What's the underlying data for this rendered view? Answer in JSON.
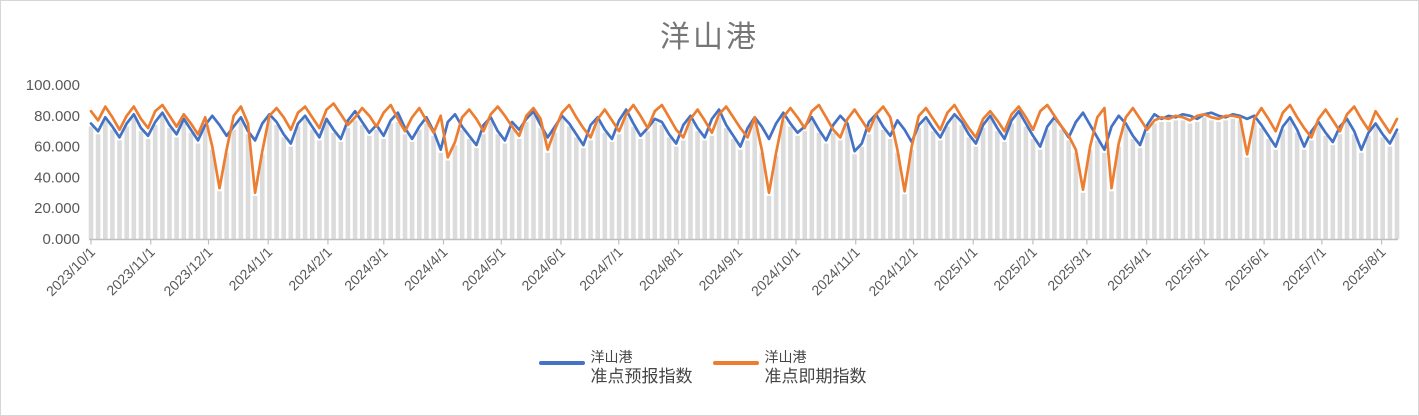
{
  "chart": {
    "title": "洋山港"
  },
  "legend": {
    "entries": [
      {
        "line1": "洋山港",
        "line2": "准点预报指数"
      },
      {
        "line1": "洋山港",
        "line2": "准点即期指数"
      }
    ]
  },
  "chart_data": {
    "type": "line",
    "title": "洋山港",
    "xlabel": "",
    "ylabel": "",
    "ylim": [
      0,
      100
    ],
    "grid": false,
    "legend_position": "bottom",
    "y_tick_labels": [
      "0.000",
      "20.000",
      "40.000",
      "60.000",
      "80.000",
      "100.000"
    ],
    "y_tick_values": [
      0,
      20,
      40,
      60,
      80,
      100
    ],
    "span_days": 678,
    "x_labels": [
      {
        "label": "2023/10/1",
        "day": 0
      },
      {
        "label": "2023/11/1",
        "day": 31
      },
      {
        "label": "2023/12/1",
        "day": 61
      },
      {
        "label": "2024/1/1",
        "day": 92
      },
      {
        "label": "2024/2/1",
        "day": 123
      },
      {
        "label": "2024/3/1",
        "day": 152
      },
      {
        "label": "2024/4/1",
        "day": 183
      },
      {
        "label": "2024/5/1",
        "day": 213
      },
      {
        "label": "2024/6/1",
        "day": 244
      },
      {
        "label": "2024/7/1",
        "day": 274
      },
      {
        "label": "2024/8/1",
        "day": 305
      },
      {
        "label": "2024/9/1",
        "day": 336
      },
      {
        "label": "2024/10/1",
        "day": 366
      },
      {
        "label": "2024/11/1",
        "day": 397
      },
      {
        "label": "2024/12/1",
        "day": 427
      },
      {
        "label": "2025/1/1",
        "day": 458
      },
      {
        "label": "2025/2/1",
        "day": 489
      },
      {
        "label": "2025/3/1",
        "day": 517
      },
      {
        "label": "2025/4/1",
        "day": 548
      },
      {
        "label": "2025/5/1",
        "day": 578
      },
      {
        "label": "2025/6/1",
        "day": 609
      },
      {
        "label": "2025/7/1",
        "day": 639
      },
      {
        "label": "2025/8/1",
        "day": 670
      }
    ],
    "colors": {
      "forecast": "#4472C4",
      "spot": "#ED7D31",
      "droplines": "#DCDCDC",
      "axis": "#BFBFBF",
      "labels": "#595959"
    },
    "series": [
      {
        "name": "洋山港准点预报指数",
        "color": "#4472C4",
        "values": [
          75,
          70,
          79,
          73,
          66,
          75,
          81,
          72,
          67,
          76,
          82,
          74,
          68,
          78,
          71,
          64,
          74,
          80,
          74,
          67,
          73,
          79,
          70,
          64,
          75,
          81,
          76,
          68,
          62,
          75,
          80,
          73,
          66,
          78,
          71,
          65,
          77,
          83,
          76,
          69,
          74,
          67,
          77,
          82,
          72,
          65,
          73,
          79,
          70,
          58,
          76,
          81,
          73,
          67,
          61,
          74,
          79,
          70,
          64,
          76,
          71,
          78,
          83,
          74,
          66,
          73,
          80,
          75,
          68,
          61,
          74,
          79,
          71,
          65,
          77,
          84,
          75,
          67,
          72,
          78,
          76,
          68,
          62,
          74,
          80,
          72,
          66,
          78,
          84,
          74,
          67,
          60,
          72,
          79,
          73,
          65,
          75,
          82,
          75,
          69,
          73,
          79,
          71,
          64,
          74,
          80,
          75,
          57,
          62,
          76,
          81,
          73,
          67,
          77,
          71,
          63,
          74,
          79,
          72,
          66,
          75,
          81,
          76,
          68,
          62,
          74,
          80,
          72,
          65,
          77,
          83,
          75,
          67,
          60,
          73,
          79,
          73,
          66,
          76,
          82,
          74,
          66,
          58,
          73,
          80,
          75,
          67,
          61,
          74,
          81,
          78,
          80,
          79,
          81,
          80,
          78,
          81,
          82,
          80,
          79,
          81,
          80,
          78,
          80,
          74,
          67,
          60,
          73,
          79,
          71,
          60,
          70,
          76,
          69,
          63,
          73,
          78,
          70,
          58,
          69,
          75,
          68,
          62,
          71
        ]
      },
      {
        "name": "洋山港准点即期指数",
        "color": "#ED7D31",
        "values": [
          83,
          77,
          86,
          79,
          71,
          80,
          86,
          78,
          72,
          83,
          87,
          80,
          73,
          81,
          75,
          68,
          79,
          60,
          33,
          58,
          80,
          86,
          75,
          30,
          57,
          80,
          85,
          79,
          71,
          82,
          86,
          79,
          72,
          84,
          88,
          81,
          74,
          79,
          85,
          80,
          73,
          82,
          87,
          78,
          70,
          79,
          85,
          77,
          69,
          80,
          53,
          63,
          79,
          84,
          78,
          70,
          81,
          86,
          80,
          73,
          67,
          80,
          85,
          78,
          58,
          71,
          82,
          87,
          79,
          72,
          66,
          78,
          84,
          77,
          70,
          81,
          87,
          80,
          72,
          83,
          87,
          79,
          71,
          66,
          78,
          84,
          77,
          69,
          81,
          86,
          79,
          72,
          66,
          79,
          58,
          30,
          56,
          79,
          85,
          79,
          72,
          83,
          87,
          79,
          71,
          66,
          78,
          84,
          77,
          70,
          81,
          86,
          79,
          58,
          31,
          60,
          80,
          85,
          78,
          71,
          82,
          87,
          79,
          72,
          66,
          78,
          83,
          77,
          70,
          81,
          86,
          79,
          71,
          83,
          87,
          80,
          73,
          67,
          58,
          32,
          60,
          79,
          85,
          33,
          62,
          79,
          85,
          78,
          71,
          77,
          79,
          78,
          80,
          79,
          77,
          80,
          81,
          79,
          78,
          80,
          80,
          79,
          55,
          78,
          85,
          78,
          70,
          82,
          87,
          79,
          72,
          66,
          78,
          84,
          77,
          70,
          81,
          86,
          78,
          71,
          83,
          76,
          69,
          78
        ]
      }
    ]
  }
}
